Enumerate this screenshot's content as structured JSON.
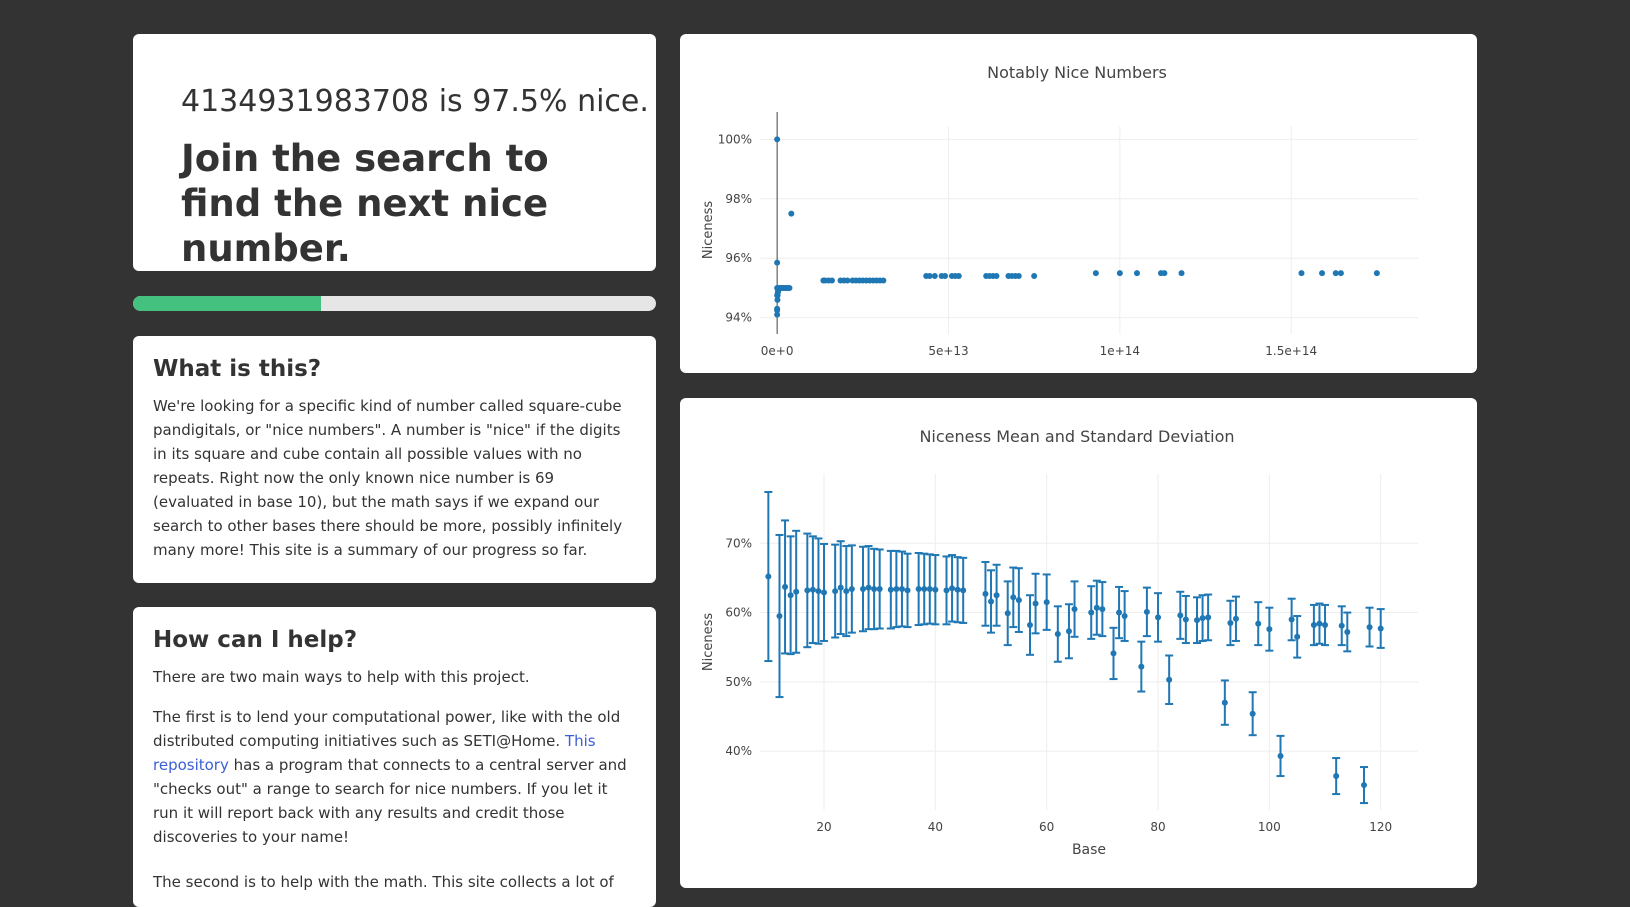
{
  "hero": {
    "number": "4134931983708",
    "is_word": "is",
    "percent": "97.5%",
    "nice_word": "nice.",
    "headline": "Join the search to find the next nice number."
  },
  "progress": {
    "fraction": 0.36,
    "fill_color": "#44c17f"
  },
  "what": {
    "title": "What is this?",
    "body": "We're looking for a specific kind of number called square-cube pandigitals, or \"nice numbers\". A number is \"nice\" if the digits in its square and cube contain all possible values with no repeats. Right now the only known nice number is 69 (evaluated in base 10), but the math says if we expand our search to other bases there should be more, possibly infinitely many more! This site is a summary of our progress so far."
  },
  "help": {
    "title": "How can I help?",
    "intro": "There are two main ways to help with this project.",
    "p1_before": "The first is to lend your computational power, like with the old distributed computing initiatives such as SETI@Home.",
    "p1_link": "This repository",
    "p1_after": "has a program that connects to a central server and \"checks out\" a range to search for nice numbers. If you let it run it will report back with any results and credit those discoveries to your name!",
    "p2": "The second is to help with the math. This site collects a lot of"
  },
  "colors": {
    "accent": "#1f77b4",
    "background": "#333333",
    "progress": "#44c17f",
    "link": "#3b5fd6"
  },
  "chart_data": [
    {
      "type": "scatter",
      "title": "Notably Nice Numbers",
      "xlabel": "",
      "ylabel": "Niceness",
      "xlim": [
        -5000000000000.0,
        187000000000000.0
      ],
      "ylim": [
        93.45,
        100.45
      ],
      "xticks": [
        0,
        50000000000000.0,
        100000000000000.0,
        150000000000000.0
      ],
      "xtick_labels": [
        "0e+0",
        "5e+13",
        "1e+14",
        "1.5e+14"
      ],
      "yticks": [
        94,
        96,
        98,
        100
      ],
      "ytick_labels": [
        "94%",
        "96%",
        "98%",
        "100%"
      ],
      "points": [
        [
          0,
          100
        ],
        [
          0,
          95.85
        ],
        [
          0,
          95.0
        ],
        [
          0,
          94.75
        ],
        [
          0,
          94.25
        ],
        [
          0,
          94.1
        ],
        [
          0,
          94.3
        ],
        [
          100000000000.0,
          94.6
        ],
        [
          150000000000.0,
          94.75
        ],
        [
          200000000000.0,
          94.85
        ],
        [
          300000000000.0,
          94.9
        ],
        [
          400000000000.0,
          95.0
        ],
        [
          800000000000.0,
          95.0
        ],
        [
          1200000000000.0,
          95.0
        ],
        [
          1600000000000.0,
          95.0
        ],
        [
          2000000000000.0,
          95.0
        ],
        [
          2400000000000.0,
          95.0
        ],
        [
          2800000000000.0,
          95.0
        ],
        [
          3200000000000.0,
          95.0
        ],
        [
          3600000000000.0,
          95.0
        ],
        [
          4134900000000.0,
          97.5
        ],
        [
          13500000000000.0,
          95.25
        ],
        [
          14000000000000.0,
          95.25
        ],
        [
          15000000000000.0,
          95.25
        ],
        [
          16000000000000.0,
          95.25
        ],
        [
          18500000000000.0,
          95.25
        ],
        [
          19500000000000.0,
          95.25
        ],
        [
          20500000000000.0,
          95.25
        ],
        [
          22000000000000.0,
          95.25
        ],
        [
          23000000000000.0,
          95.25
        ],
        [
          24000000000000.0,
          95.25
        ],
        [
          25000000000000.0,
          95.25
        ],
        [
          26000000000000.0,
          95.25
        ],
        [
          27000000000000.0,
          95.25
        ],
        [
          28000000000000.0,
          95.25
        ],
        [
          29000000000000.0,
          95.25
        ],
        [
          30000000000000.0,
          95.25
        ],
        [
          31000000000000.0,
          95.25
        ],
        [
          43500000000000.0,
          95.4
        ],
        [
          44500000000000.0,
          95.4
        ],
        [
          46000000000000.0,
          95.4
        ],
        [
          48000000000000.0,
          95.4
        ],
        [
          49000000000000.0,
          95.4
        ],
        [
          51000000000000.0,
          95.4
        ],
        [
          52000000000000.0,
          95.4
        ],
        [
          53000000000000.0,
          95.4
        ],
        [
          61000000000000.0,
          95.4
        ],
        [
          62000000000000.0,
          95.4
        ],
        [
          63000000000000.0,
          95.4
        ],
        [
          64000000000000.0,
          95.4
        ],
        [
          67500000000000.0,
          95.4
        ],
        [
          68500000000000.0,
          95.4
        ],
        [
          69500000000000.0,
          95.4
        ],
        [
          70500000000000.0,
          95.4
        ],
        [
          75000000000000.0,
          95.4
        ],
        [
          93000000000000.0,
          95.5
        ],
        [
          100000000000000.0,
          95.5
        ],
        [
          105000000000000.0,
          95.5
        ],
        [
          112000000000000.0,
          95.5
        ],
        [
          113000000000000.0,
          95.5
        ],
        [
          118000000000000.0,
          95.5
        ],
        [
          153000000000000.0,
          95.5
        ],
        [
          159000000000000.0,
          95.5
        ],
        [
          163000000000000.0,
          95.5
        ],
        [
          164500000000000.0,
          95.5
        ],
        [
          175000000000000.0,
          95.5
        ]
      ]
    },
    {
      "type": "scatter",
      "title": "Niceness Mean and Standard Deviation",
      "xlabel": "Base",
      "ylabel": "Niceness",
      "xlim": [
        8.5,
        126.7
      ],
      "ylim": [
        31.5,
        80
      ],
      "xticks": [
        20,
        40,
        60,
        80,
        100,
        120
      ],
      "xtick_labels": [
        "20",
        "40",
        "60",
        "80",
        "100",
        "120"
      ],
      "yticks": [
        40,
        50,
        60,
        70
      ],
      "ytick_labels": [
        "40%",
        "50%",
        "60%",
        "70%"
      ],
      "error_bars": "symmetric",
      "points": [
        {
          "x": 10,
          "mean": 65.2,
          "sd": 12.2
        },
        {
          "x": 12,
          "mean": 59.5,
          "sd": 11.7
        },
        {
          "x": 13,
          "mean": 63.7,
          "sd": 9.6
        },
        {
          "x": 14,
          "mean": 62.5,
          "sd": 8.5
        },
        {
          "x": 15,
          "mean": 63.0,
          "sd": 8.8
        },
        {
          "x": 17,
          "mean": 63.2,
          "sd": 8.2
        },
        {
          "x": 18,
          "mean": 63.3,
          "sd": 7.7
        },
        {
          "x": 19,
          "mean": 63.1,
          "sd": 7.6
        },
        {
          "x": 20,
          "mean": 62.9,
          "sd": 7.0
        },
        {
          "x": 22,
          "mean": 63.1,
          "sd": 6.7
        },
        {
          "x": 23,
          "mean": 63.6,
          "sd": 6.7
        },
        {
          "x": 24,
          "mean": 63.1,
          "sd": 6.5
        },
        {
          "x": 25,
          "mean": 63.4,
          "sd": 6.3
        },
        {
          "x": 27,
          "mean": 63.4,
          "sd": 6.1
        },
        {
          "x": 28,
          "mean": 63.6,
          "sd": 6.0
        },
        {
          "x": 29,
          "mean": 63.4,
          "sd": 5.8
        },
        {
          "x": 30,
          "mean": 63.4,
          "sd": 5.7
        },
        {
          "x": 32,
          "mean": 63.3,
          "sd": 5.6
        },
        {
          "x": 33,
          "mean": 63.4,
          "sd": 5.5
        },
        {
          "x": 34,
          "mean": 63.4,
          "sd": 5.4
        },
        {
          "x": 35,
          "mean": 63.2,
          "sd": 5.3
        },
        {
          "x": 37,
          "mean": 63.4,
          "sd": 5.2
        },
        {
          "x": 38,
          "mean": 63.4,
          "sd": 5.1
        },
        {
          "x": 39,
          "mean": 63.4,
          "sd": 5.0
        },
        {
          "x": 40,
          "mean": 63.3,
          "sd": 5.0
        },
        {
          "x": 42,
          "mean": 63.2,
          "sd": 4.9
        },
        {
          "x": 43,
          "mean": 63.5,
          "sd": 4.8
        },
        {
          "x": 44,
          "mean": 63.3,
          "sd": 4.7
        },
        {
          "x": 45,
          "mean": 63.2,
          "sd": 4.7
        },
        {
          "x": 49,
          "mean": 62.7,
          "sd": 4.6
        },
        {
          "x": 50,
          "mean": 61.6,
          "sd": 4.5
        },
        {
          "x": 51,
          "mean": 62.5,
          "sd": 4.4
        },
        {
          "x": 53,
          "mean": 59.9,
          "sd": 4.6
        },
        {
          "x": 54,
          "mean": 62.2,
          "sd": 4.3
        },
        {
          "x": 55,
          "mean": 61.8,
          "sd": 4.6
        },
        {
          "x": 57,
          "mean": 58.2,
          "sd": 4.3
        },
        {
          "x": 58,
          "mean": 61.3,
          "sd": 4.3
        },
        {
          "x": 60,
          "mean": 61.5,
          "sd": 4.0
        },
        {
          "x": 62,
          "mean": 56.9,
          "sd": 4.0
        },
        {
          "x": 64,
          "mean": 57.3,
          "sd": 3.9
        },
        {
          "x": 65,
          "mean": 60.5,
          "sd": 4.0
        },
        {
          "x": 68,
          "mean": 60.0,
          "sd": 3.8
        },
        {
          "x": 69,
          "mean": 60.7,
          "sd": 3.9
        },
        {
          "x": 70,
          "mean": 60.5,
          "sd": 3.9
        },
        {
          "x": 72,
          "mean": 54.1,
          "sd": 3.7
        },
        {
          "x": 73,
          "mean": 60.0,
          "sd": 3.7
        },
        {
          "x": 74,
          "mean": 59.5,
          "sd": 3.6
        },
        {
          "x": 77,
          "mean": 52.2,
          "sd": 3.6
        },
        {
          "x": 78,
          "mean": 60.1,
          "sd": 3.5
        },
        {
          "x": 80,
          "mean": 59.3,
          "sd": 3.5
        },
        {
          "x": 82,
          "mean": 50.3,
          "sd": 3.5
        },
        {
          "x": 84,
          "mean": 59.6,
          "sd": 3.4
        },
        {
          "x": 85,
          "mean": 59.0,
          "sd": 3.4
        },
        {
          "x": 87,
          "mean": 58.9,
          "sd": 3.3
        },
        {
          "x": 88,
          "mean": 59.2,
          "sd": 3.3
        },
        {
          "x": 89,
          "mean": 59.3,
          "sd": 3.3
        },
        {
          "x": 92,
          "mean": 47.0,
          "sd": 3.2
        },
        {
          "x": 93,
          "mean": 58.5,
          "sd": 3.2
        },
        {
          "x": 94,
          "mean": 59.1,
          "sd": 3.2
        },
        {
          "x": 97,
          "mean": 45.4,
          "sd": 3.1
        },
        {
          "x": 98,
          "mean": 58.4,
          "sd": 3.1
        },
        {
          "x": 100,
          "mean": 57.6,
          "sd": 3.1
        },
        {
          "x": 102,
          "mean": 39.3,
          "sd": 2.9
        },
        {
          "x": 104,
          "mean": 59.0,
          "sd": 3.0
        },
        {
          "x": 105,
          "mean": 56.5,
          "sd": 3.0
        },
        {
          "x": 108,
          "mean": 58.2,
          "sd": 2.9
        },
        {
          "x": 109,
          "mean": 58.4,
          "sd": 2.9
        },
        {
          "x": 110,
          "mean": 58.2,
          "sd": 2.9
        },
        {
          "x": 112,
          "mean": 36.4,
          "sd": 2.6
        },
        {
          "x": 113,
          "mean": 58.1,
          "sd": 2.8
        },
        {
          "x": 114,
          "mean": 57.2,
          "sd": 2.8
        },
        {
          "x": 117,
          "mean": 35.1,
          "sd": 2.6
        },
        {
          "x": 118,
          "mean": 57.9,
          "sd": 2.8
        },
        {
          "x": 120,
          "mean": 57.7,
          "sd": 2.8
        }
      ]
    }
  ]
}
